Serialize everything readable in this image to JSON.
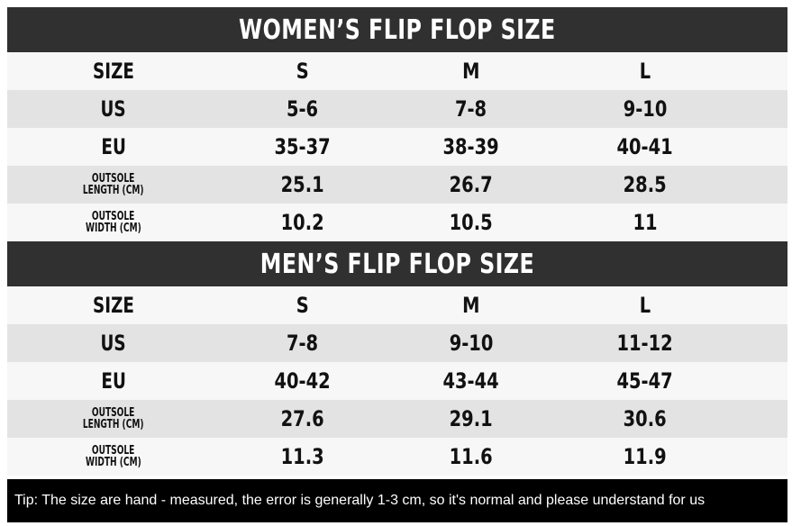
{
  "women": {
    "title": "WOMEN’S FLIP FLOP SIZE",
    "rows": [
      {
        "label": "SIZE",
        "values": [
          "S",
          "M",
          "L"
        ]
      },
      {
        "label": "US",
        "values": [
          "5-6",
          "7-8",
          "9-10"
        ]
      },
      {
        "label": "EU",
        "values": [
          "35-37",
          "38-39",
          "40-41"
        ]
      },
      {
        "label_line1": "OUTSOLE",
        "label_line2": "LENGTH (CM)",
        "values": [
          "25.1",
          "26.7",
          "28.5"
        ]
      },
      {
        "label_line1": "OUTSOLE",
        "label_line2": "WIDTH (CM)",
        "values": [
          "10.2",
          "10.5",
          "11"
        ]
      }
    ]
  },
  "men": {
    "title": "MEN’S FLIP FLOP SIZE",
    "rows": [
      {
        "label": "SIZE",
        "values": [
          "S",
          "M",
          "L"
        ]
      },
      {
        "label": "US",
        "values": [
          "7-8",
          "9-10",
          "11-12"
        ]
      },
      {
        "label": "EU",
        "values": [
          "40-42",
          "43-44",
          "45-47"
        ]
      },
      {
        "label_line1": "OUTSOLE",
        "label_line2": "LENGTH (CM)",
        "values": [
          "27.6",
          "29.1",
          "30.6"
        ]
      },
      {
        "label_line1": "OUTSOLE",
        "label_line2": "WIDTH (CM)",
        "values": [
          "11.3",
          "11.6",
          "11.9"
        ]
      }
    ]
  },
  "tip": "Tip: The size are hand - measured, the error is generally 1-3 cm, so it's normal and please understand for us",
  "colors": {
    "header_bg": "#303030",
    "header_text": "#ffffff",
    "row_alt": "#e3e3e3",
    "row_light": "#f7f7f7",
    "tip_bg": "#000000",
    "tip_text": "#ffffff"
  }
}
